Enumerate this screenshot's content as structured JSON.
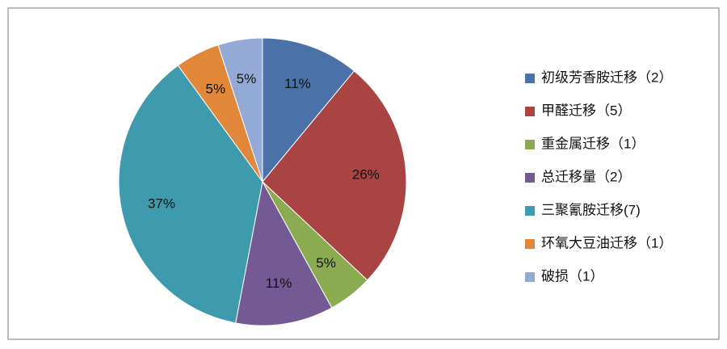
{
  "chart_data": {
    "type": "pie",
    "categories": [
      "初级芳香胺迁移（2）",
      "甲醛迁移（5）",
      "重金属迁移（1）",
      "总迁移量（2）",
      "三聚氰胺迁移(7)",
      "环氧大豆油迁移（1）",
      "破损（1）"
    ],
    "values": [
      11,
      26,
      5,
      11,
      37,
      5,
      5
    ],
    "value_labels": [
      "11%",
      "26%",
      "5%",
      "11%",
      "37%",
      "5%",
      "5%"
    ],
    "colors": [
      "#4a72a8",
      "#a94442",
      "#8aab4f",
      "#745a94",
      "#3e9aad",
      "#e0873a",
      "#94aad6"
    ],
    "legend": "right"
  }
}
